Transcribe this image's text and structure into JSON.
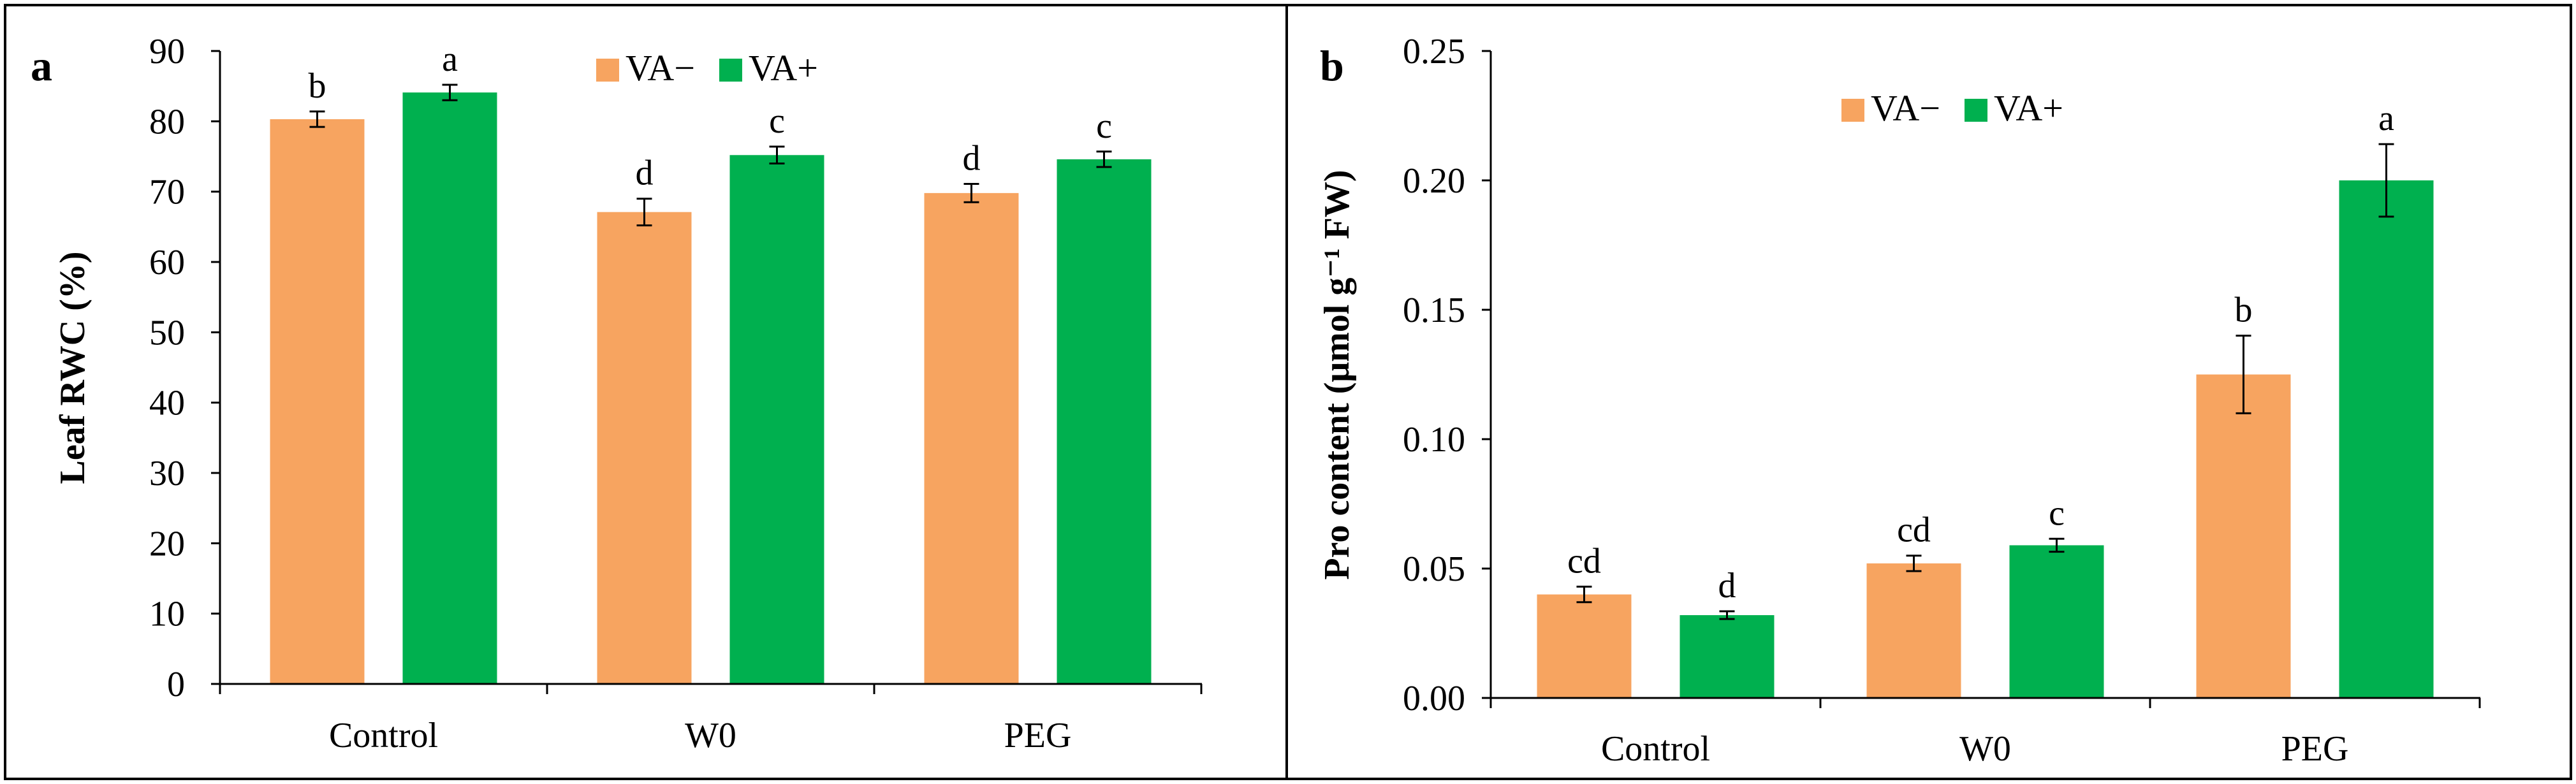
{
  "colors": {
    "va_minus": "#F7A460",
    "va_plus": "#00B04F",
    "frame": "#000000"
  },
  "chart_data": [
    {
      "panel": "a",
      "type": "bar",
      "title": "",
      "xlabel": "",
      "ylabel": "Leaf RWC (%)",
      "ylim": [
        0,
        90
      ],
      "yticks": [
        0,
        10,
        20,
        30,
        40,
        50,
        60,
        70,
        80,
        90
      ],
      "ytick_labels": [
        "0",
        "10",
        "20",
        "30",
        "40",
        "50",
        "60",
        "70",
        "80",
        "90"
      ],
      "categories": [
        "Control",
        "W0",
        "PEG"
      ],
      "legend": "top-center",
      "series": [
        {
          "name": "VA−",
          "values": [
            80.3,
            67.1,
            69.8
          ],
          "errors": [
            1.1,
            1.9,
            1.3
          ],
          "labels": [
            "b",
            "d",
            "d"
          ]
        },
        {
          "name": "VA+",
          "values": [
            84.1,
            75.2,
            74.6
          ],
          "errors": [
            1.1,
            1.2,
            1.1
          ],
          "labels": [
            "a",
            "c",
            "c"
          ]
        }
      ]
    },
    {
      "panel": "b",
      "type": "bar",
      "title": "",
      "xlabel": "",
      "ylabel": "Pro content (μmol g⁻¹ FW)",
      "ylim": [
        0,
        0.25
      ],
      "yticks": [
        0,
        0.05,
        0.1,
        0.15,
        0.2,
        0.25
      ],
      "ytick_labels": [
        "0.00",
        "0.05",
        "0.10",
        "0.15",
        "0.20",
        "0.25"
      ],
      "categories": [
        "Control",
        "W0",
        "PEG"
      ],
      "legend": "top-left",
      "series": [
        {
          "name": "VA−",
          "values": [
            0.04,
            0.052,
            0.125
          ],
          "errors": [
            0.003,
            0.003,
            0.015
          ],
          "labels": [
            "cd",
            "cd",
            "b"
          ]
        },
        {
          "name": "VA+",
          "values": [
            0.032,
            0.059,
            0.2
          ],
          "errors": [
            0.0015,
            0.0025,
            0.014
          ],
          "labels": [
            "d",
            "c",
            "a"
          ]
        }
      ]
    }
  ]
}
